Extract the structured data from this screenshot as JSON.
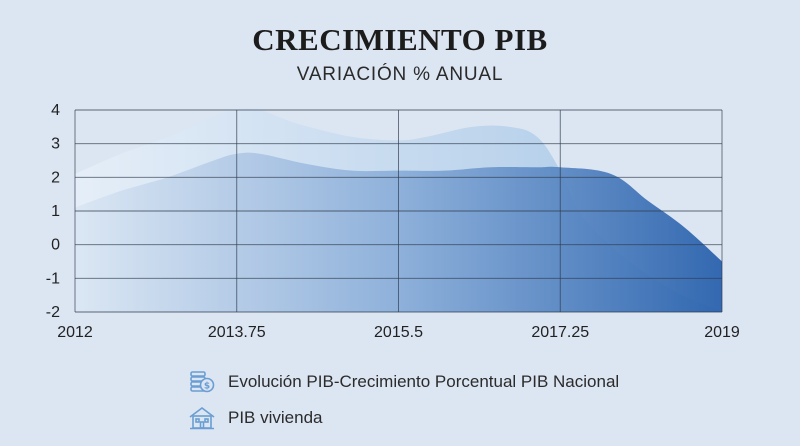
{
  "header": {
    "title": "CRECIMIENTO PIB",
    "subtitle": "VARIACIÓN % ANUAL"
  },
  "chart_data": {
    "type": "area",
    "title": "CRECIMIENTO PIB",
    "subtitle": "VARIACIÓN % ANUAL",
    "x_ticks": [
      2012,
      2013.75,
      2015.5,
      2017.25,
      2019
    ],
    "x_tick_labels": [
      "2012",
      "2013.75",
      "2015.5",
      "2017.25",
      "2019"
    ],
    "y_ticks": [
      4,
      3,
      2,
      1,
      0,
      -1,
      -2
    ],
    "y_tick_labels": [
      "4",
      "3",
      "2",
      "1",
      "0",
      "-1",
      "-2"
    ],
    "y_axis_note": "uniformly spaced category-like ticks (4,3,2,1,0,-1,-2)",
    "ylim": [
      -2,
      4
    ],
    "xlim": [
      2012,
      2019
    ],
    "grid": true,
    "legend_position": "bottom",
    "series": [
      {
        "name": "Evolución PIB-Crecimiento Porcentual PIB Nacional",
        "color": "#b9d2ea",
        "x": [
          2012,
          2012.5,
          2013.0,
          2013.5,
          2013.75,
          2014.0,
          2014.4,
          2015.0,
          2015.5,
          2015.8,
          2016.3,
          2016.7,
          2017.0,
          2017.25,
          2017.5,
          2018.0,
          2018.5,
          2019
        ],
        "values": [
          2.1,
          2.7,
          3.2,
          3.8,
          4.0,
          4.0,
          3.6,
          3.2,
          3.1,
          3.2,
          3.5,
          3.5,
          3.2,
          2.2,
          0.8,
          -0.5,
          -1.4,
          -2.0
        ]
      },
      {
        "name": "PIB vivienda",
        "color": "#3d72b8",
        "x": [
          2012,
          2012.5,
          2013.0,
          2013.5,
          2013.75,
          2014.0,
          2014.5,
          2015.0,
          2015.5,
          2016.0,
          2016.5,
          2017.0,
          2017.25,
          2017.8,
          2018.2,
          2018.6,
          2019
        ],
        "values": [
          1.1,
          1.6,
          2.0,
          2.5,
          2.7,
          2.7,
          2.4,
          2.2,
          2.2,
          2.2,
          2.3,
          2.3,
          2.3,
          2.1,
          1.3,
          0.5,
          -0.5
        ]
      }
    ]
  },
  "legend": {
    "items": [
      {
        "label": "Evolución PIB-Crecimiento Porcentual PIB Nacional",
        "icon": "coins-icon"
      },
      {
        "label": "PIB vivienda",
        "icon": "house-icon"
      }
    ]
  },
  "colors": {
    "background": "#dce5f2",
    "grid": "#2f3b4c",
    "series1_light": "#e3edf8",
    "series1_dark": "#aac8e6",
    "series2_light": "#d9e5f3",
    "series2_dark": "#2c63ac",
    "icon": "#6a9ed2"
  }
}
